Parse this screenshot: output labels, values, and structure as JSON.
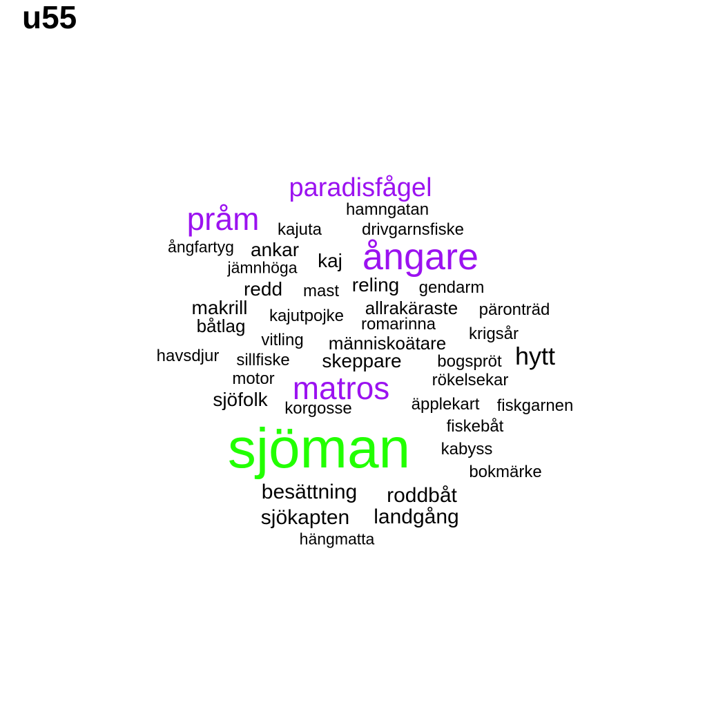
{
  "title": "u55",
  "chart_data": {
    "type": "wordcloud",
    "title": "u55",
    "colors": {
      "top": "#22ff00",
      "high": "#9b12f0",
      "normal": "#000000"
    },
    "words": [
      {
        "text": "sjöman",
        "weight": 10,
        "tier": "top"
      },
      {
        "text": "ångare",
        "weight": 5,
        "tier": "high"
      },
      {
        "text": "matros",
        "weight": 4.5,
        "tier": "high"
      },
      {
        "text": "pråm",
        "weight": 4.5,
        "tier": "high"
      },
      {
        "text": "paradisfågel",
        "weight": 4,
        "tier": "high"
      },
      {
        "text": "hytt",
        "weight": 3,
        "tier": "normal"
      },
      {
        "text": "besättning",
        "weight": 2.8,
        "tier": "normal"
      },
      {
        "text": "roddbåt",
        "weight": 2.8,
        "tier": "normal"
      },
      {
        "text": "sjökapten",
        "weight": 2.8,
        "tier": "normal"
      },
      {
        "text": "landgång",
        "weight": 2.8,
        "tier": "normal"
      },
      {
        "text": "skeppare",
        "weight": 2.6,
        "tier": "normal"
      },
      {
        "text": "reling",
        "weight": 2.6,
        "tier": "normal"
      },
      {
        "text": "kaj",
        "weight": 2.6,
        "tier": "normal"
      },
      {
        "text": "redd",
        "weight": 2.6,
        "tier": "normal"
      },
      {
        "text": "makrill",
        "weight": 2.6,
        "tier": "normal"
      },
      {
        "text": "ankar",
        "weight": 2.6,
        "tier": "normal"
      },
      {
        "text": "sjöfolk",
        "weight": 2.6,
        "tier": "normal"
      },
      {
        "text": "människoätare",
        "weight": 2.4,
        "tier": "normal"
      },
      {
        "text": "allrakäraste",
        "weight": 2.4,
        "tier": "normal"
      },
      {
        "text": "båtlag",
        "weight": 2.4,
        "tier": "normal"
      },
      {
        "text": "hamngatan",
        "weight": 2.2,
        "tier": "normal"
      },
      {
        "text": "kajuta",
        "weight": 2.2,
        "tier": "normal"
      },
      {
        "text": "drivgarnsfiske",
        "weight": 2.2,
        "tier": "normal"
      },
      {
        "text": "mast",
        "weight": 2.2,
        "tier": "normal"
      },
      {
        "text": "gendarm",
        "weight": 2.2,
        "tier": "normal"
      },
      {
        "text": "päronträd",
        "weight": 2.2,
        "tier": "normal"
      },
      {
        "text": "kajutpojke",
        "weight": 2.2,
        "tier": "normal"
      },
      {
        "text": "romarinna",
        "weight": 2.2,
        "tier": "normal"
      },
      {
        "text": "krigsår",
        "weight": 2.2,
        "tier": "normal"
      },
      {
        "text": "vitling",
        "weight": 2.2,
        "tier": "normal"
      },
      {
        "text": "sillfiske",
        "weight": 2.2,
        "tier": "normal"
      },
      {
        "text": "bogspröt",
        "weight": 2.2,
        "tier": "normal"
      },
      {
        "text": "motor",
        "weight": 2.2,
        "tier": "normal"
      },
      {
        "text": "rökelsekar",
        "weight": 2.2,
        "tier": "normal"
      },
      {
        "text": "korgosse",
        "weight": 2.2,
        "tier": "normal"
      },
      {
        "text": "äpplekart",
        "weight": 2.2,
        "tier": "normal"
      },
      {
        "text": "fiskgarnen",
        "weight": 2.2,
        "tier": "normal"
      },
      {
        "text": "fiskebåt",
        "weight": 2.2,
        "tier": "normal"
      },
      {
        "text": "kabyss",
        "weight": 2.2,
        "tier": "normal"
      },
      {
        "text": "bokmärke",
        "weight": 2.2,
        "tier": "normal"
      },
      {
        "text": "havsdjur",
        "weight": 2.2,
        "tier": "normal"
      },
      {
        "text": "jämnhöga",
        "weight": 2,
        "tier": "normal"
      },
      {
        "text": "ångfartyg",
        "weight": 2,
        "tier": "normal"
      },
      {
        "text": "hängmatta",
        "weight": 2,
        "tier": "normal"
      }
    ]
  }
}
